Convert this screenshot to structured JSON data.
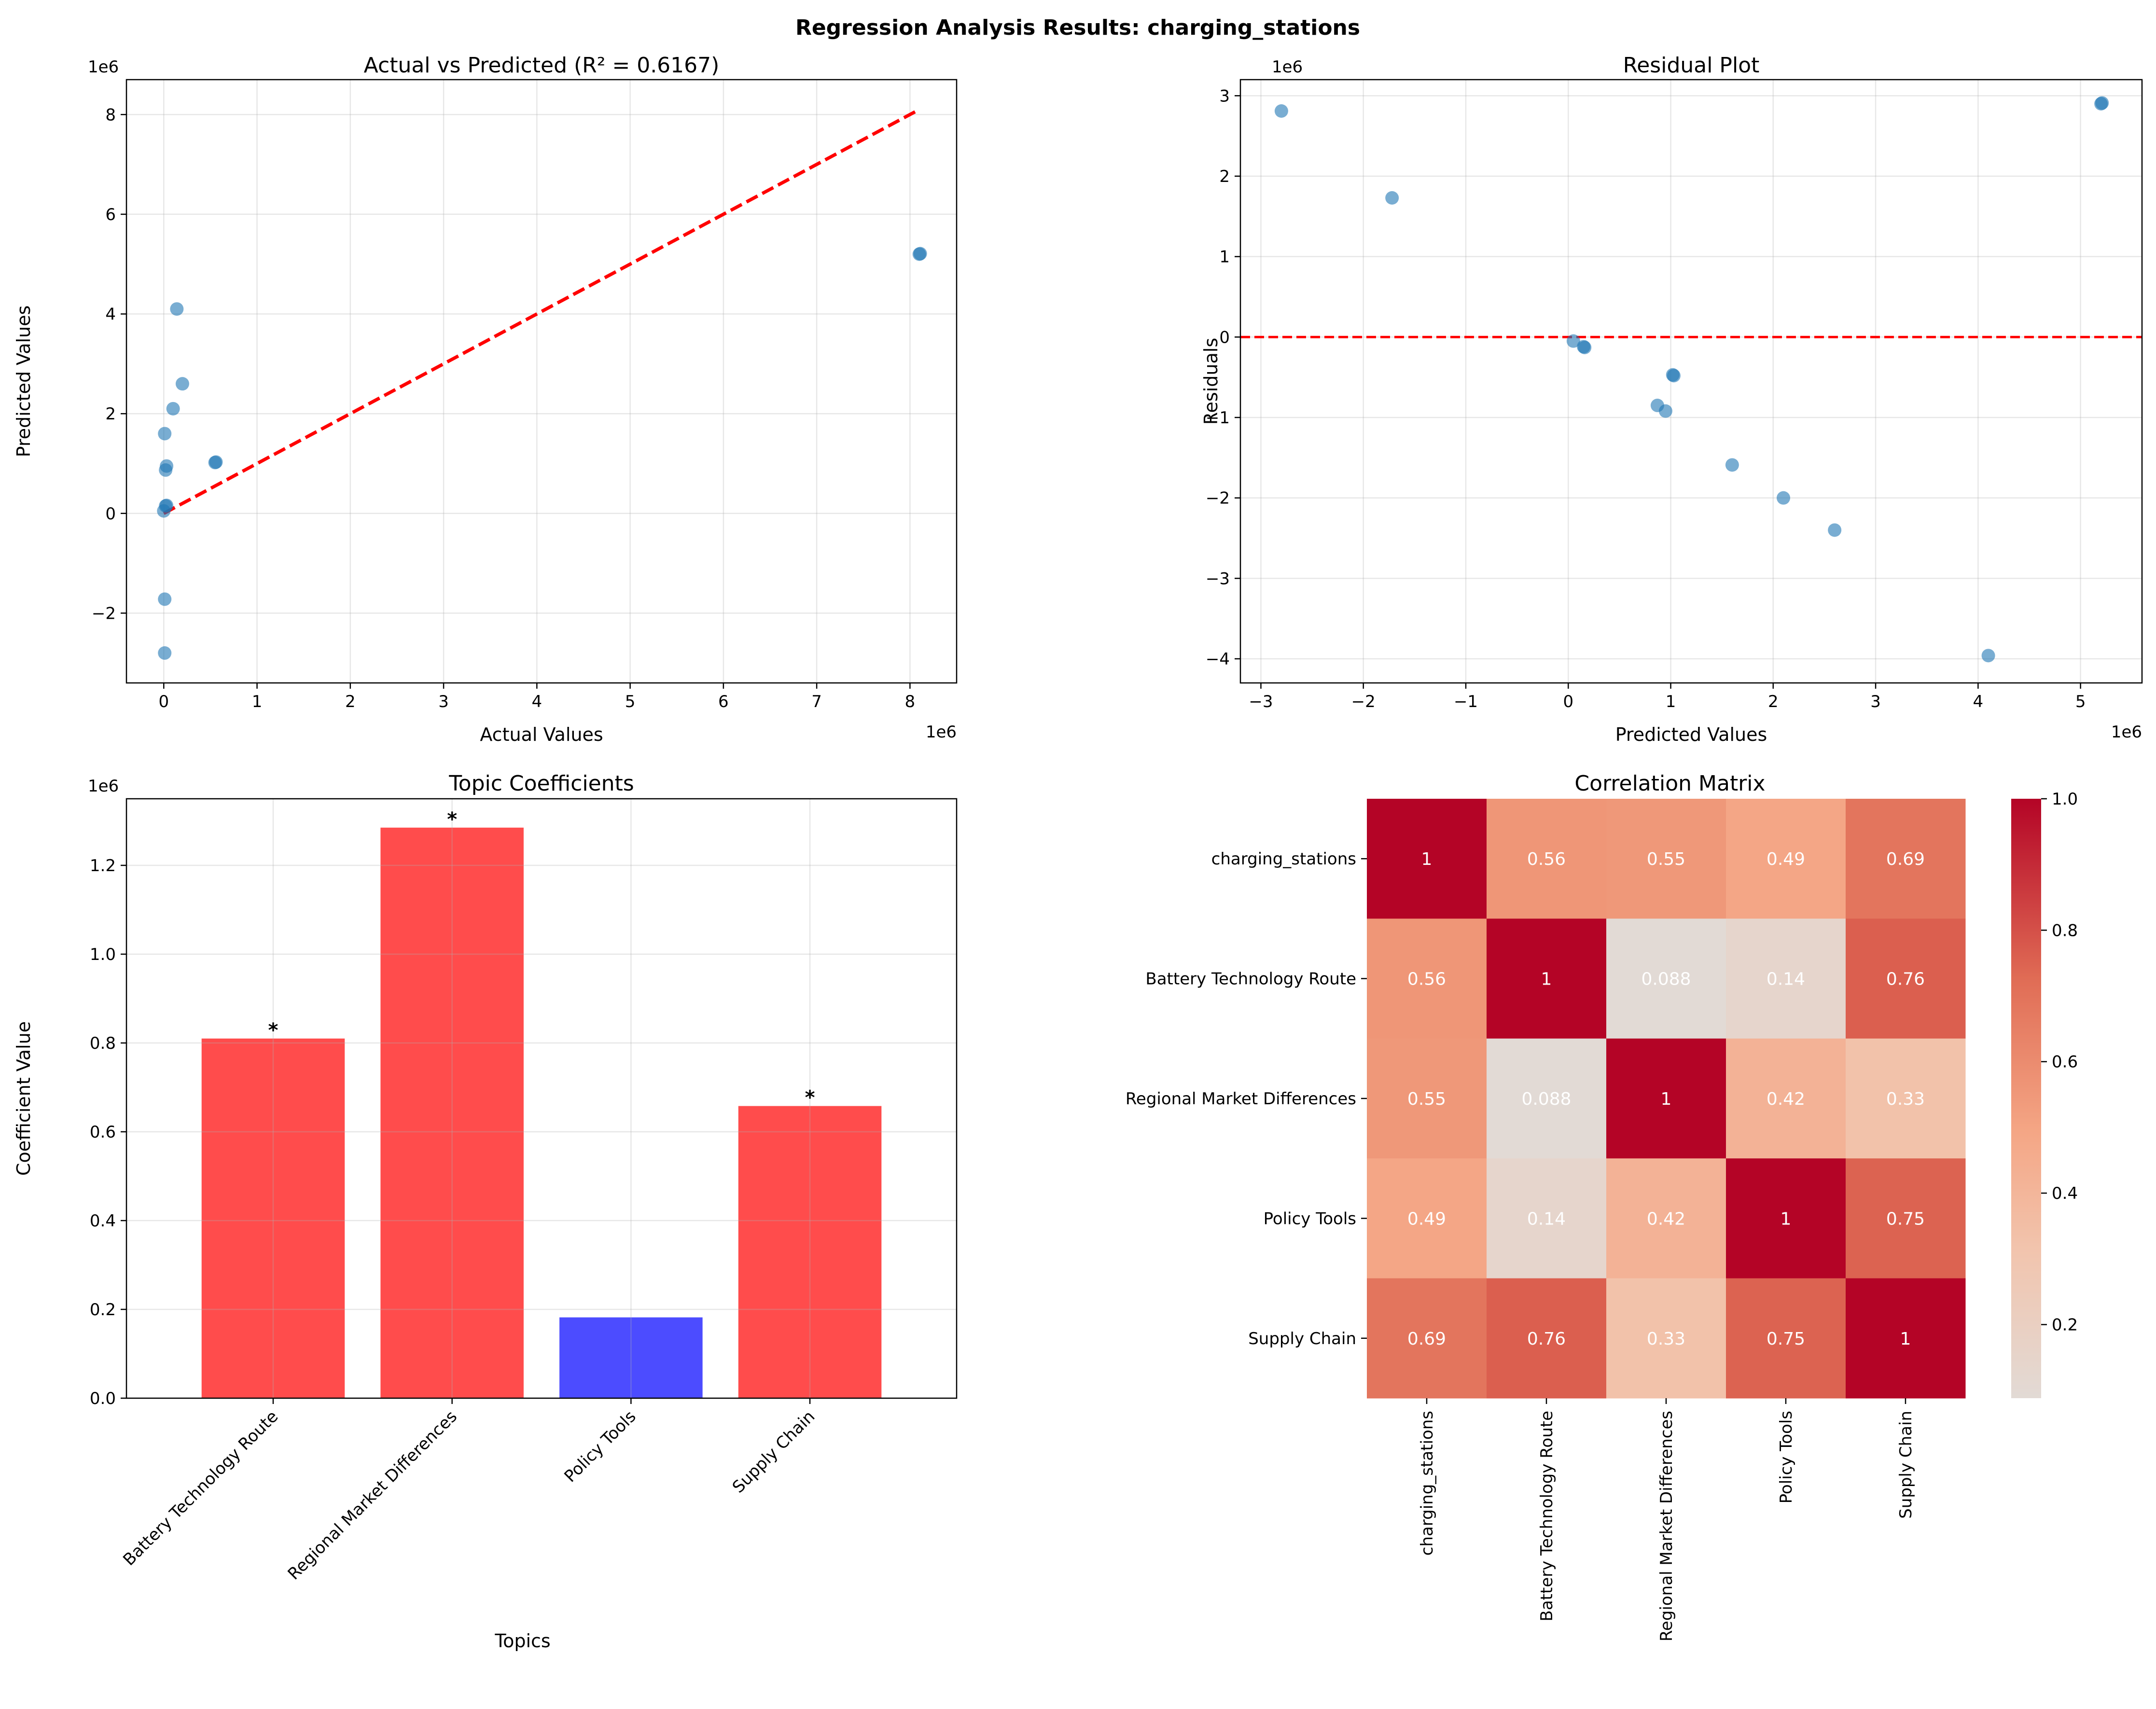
{
  "title": "Regression Analysis Results: charging_stations",
  "chart_data": [
    {
      "type": "scatter",
      "title": "Actual vs Predicted (R² = 0.6167)",
      "xlabel": "Actual Values",
      "ylabel": "Predicted Values",
      "x_offset_label": "1e6",
      "y_offset_label": "1e6",
      "xlim": [
        -0.4,
        8.5
      ],
      "ylim": [
        -3.4,
        8.7
      ],
      "xticks": [
        0,
        1,
        2,
        3,
        4,
        5,
        6,
        7,
        8
      ],
      "yticks": [
        -2,
        0,
        2,
        4,
        6,
        8
      ],
      "grid": true,
      "point_color": "#1f77b4",
      "reference_line": {
        "from": [
          0.0,
          0.0
        ],
        "to": [
          8.1,
          8.1
        ],
        "color": "#ff0000",
        "style": "dashed"
      },
      "points": [
        {
          "x": 0.01,
          "y": -2.8
        },
        {
          "x": 0.01,
          "y": -1.72
        },
        {
          "x": 0.0,
          "y": 0.05
        },
        {
          "x": 0.02,
          "y": 0.15
        },
        {
          "x": 0.03,
          "y": 0.16
        },
        {
          "x": 0.02,
          "y": 0.87
        },
        {
          "x": 0.03,
          "y": 0.95
        },
        {
          "x": 0.01,
          "y": 1.6
        },
        {
          "x": 0.1,
          "y": 2.1
        },
        {
          "x": 0.2,
          "y": 2.6
        },
        {
          "x": 0.14,
          "y": 4.1
        },
        {
          "x": 0.55,
          "y": 1.02
        },
        {
          "x": 0.56,
          "y": 1.03
        },
        {
          "x": 8.1,
          "y": 5.2
        },
        {
          "x": 8.11,
          "y": 5.21
        }
      ]
    },
    {
      "type": "scatter",
      "title": "Residual Plot",
      "xlabel": "Predicted Values",
      "ylabel": "Residuals",
      "x_offset_label": "1e6",
      "y_offset_label": "1e6",
      "xlim": [
        -3.2,
        5.6
      ],
      "ylim": [
        -4.3,
        3.2
      ],
      "xticks": [
        -3,
        -2,
        -1,
        0,
        1,
        2,
        3,
        4,
        5
      ],
      "yticks": [
        -4,
        -3,
        -2,
        -1,
        0,
        1,
        2,
        3
      ],
      "grid": true,
      "point_color": "#1f77b4",
      "reference_line": {
        "y": 0,
        "color": "#ff0000",
        "style": "dashed"
      },
      "points": [
        {
          "x": -2.8,
          "y": 2.81
        },
        {
          "x": -1.72,
          "y": 1.73
        },
        {
          "x": 0.05,
          "y": -0.05
        },
        {
          "x": 0.15,
          "y": -0.12
        },
        {
          "x": 0.16,
          "y": -0.13
        },
        {
          "x": 0.87,
          "y": -0.85
        },
        {
          "x": 0.95,
          "y": -0.92
        },
        {
          "x": 1.02,
          "y": -0.47
        },
        {
          "x": 1.03,
          "y": -0.48
        },
        {
          "x": 1.6,
          "y": -1.59
        },
        {
          "x": 2.1,
          "y": -2.0
        },
        {
          "x": 2.6,
          "y": -2.4
        },
        {
          "x": 4.1,
          "y": -3.96
        },
        {
          "x": 5.2,
          "y": 2.9
        },
        {
          "x": 5.21,
          "y": 2.91
        }
      ]
    },
    {
      "type": "bar",
      "title": "Topic Coefficients",
      "xlabel": "Topics",
      "ylabel": "Coefficient Value",
      "y_offset_label": "1e6",
      "ylim": [
        0,
        1.35
      ],
      "yticks": [
        "0.0",
        "0.2",
        "0.4",
        "0.6",
        "0.8",
        "1.0",
        "1.2"
      ],
      "grid": true,
      "categories": [
        "Battery Technology Route",
        "Regional Market Differences",
        "Policy Tools",
        "Supply Chain"
      ],
      "values": [
        0.81,
        1.285,
        0.182,
        0.658
      ],
      "colors": [
        "#ff0000",
        "#ff0000",
        "#0000ff",
        "#ff0000"
      ],
      "significance": [
        "*",
        "*",
        "",
        "*"
      ]
    },
    {
      "type": "heatmap",
      "title": "Correlation Matrix",
      "labels": [
        "charging_stations",
        "Battery Technology Route",
        "Regional Market Differences",
        "Policy Tools",
        "Supply Chain"
      ],
      "values": [
        [
          1,
          0.56,
          0.55,
          0.49,
          0.69
        ],
        [
          0.56,
          1,
          0.088,
          0.14,
          0.76
        ],
        [
          0.55,
          0.088,
          1,
          0.42,
          0.33
        ],
        [
          0.49,
          0.14,
          0.42,
          1,
          0.75
        ],
        [
          0.69,
          0.76,
          0.33,
          0.75,
          1
        ]
      ],
      "value_labels": [
        [
          "1",
          "0.56",
          "0.55",
          "0.49",
          "0.69"
        ],
        [
          "0.56",
          "1",
          "0.088",
          "0.14",
          "0.76"
        ],
        [
          "0.55",
          "0.088",
          "1",
          "0.42",
          "0.33"
        ],
        [
          "0.49",
          "0.14",
          "0.42",
          "1",
          "0.75"
        ],
        [
          "0.69",
          "0.76",
          "0.33",
          "0.75",
          "1"
        ]
      ],
      "colormap": "coolwarm",
      "colorbar_range": [
        0.088,
        1.0
      ],
      "colorbar_ticks": [
        "0.2",
        "0.4",
        "0.6",
        "0.8",
        "1.0"
      ]
    }
  ]
}
